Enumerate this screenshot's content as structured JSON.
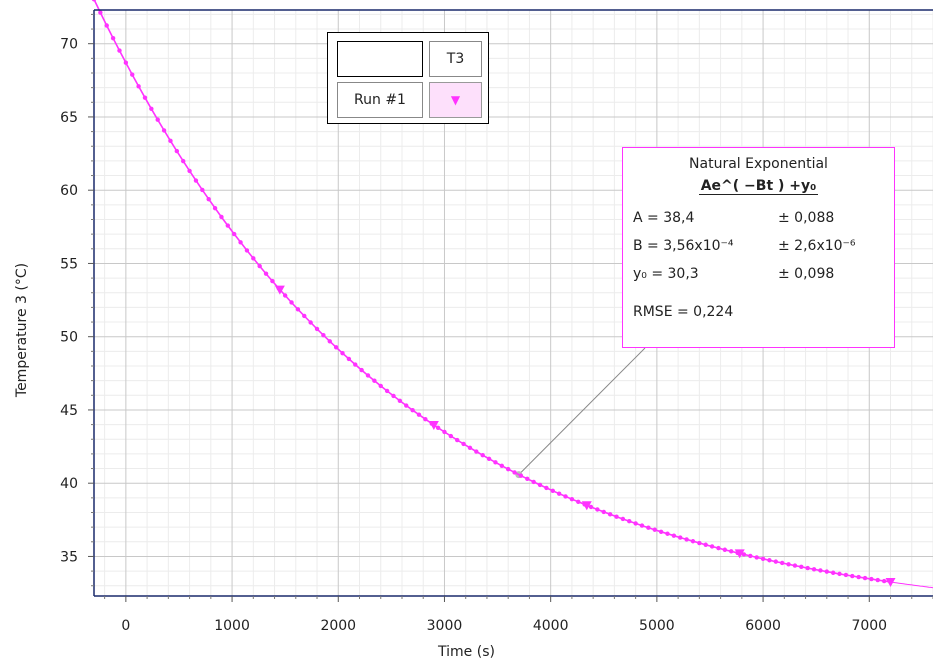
{
  "chart_data": {
    "type": "scatter",
    "title": "",
    "xlabel": "Time (s)",
    "ylabel": "Temperature 3 (°C)",
    "xlim": [
      -300,
      7600
    ],
    "ylim": [
      32.3,
      72.3
    ],
    "x_ticks": [
      "0",
      "1000",
      "2000",
      "3000",
      "4000",
      "5000",
      "6000",
      "7000"
    ],
    "y_ticks": [
      "35",
      "40",
      "45",
      "50",
      "55",
      "60",
      "65",
      "70"
    ],
    "grid": true,
    "series": [
      {
        "name": "Run #1",
        "color": "#ff33ff",
        "marker": "triangle-down",
        "x_start": -300,
        "x_end": 7200,
        "x_step": 60,
        "marker_x": [
          1450,
          2900,
          4340,
          5780,
          7200
        ]
      }
    ],
    "fit": {
      "model": "Natural Exponential",
      "A": 38.4,
      "B": 0.000356,
      "y0": 30.3,
      "callout_x": 3700
    }
  },
  "legend": {
    "header_label": "T3",
    "run_label": "Run #1",
    "run_symbol": "▼"
  },
  "fit_box": {
    "title": "Natural Exponential",
    "equation": "Ae^( −Bt ) +y₀",
    "params": [
      {
        "name": "A  = 38,4",
        "err": "± 0,088"
      },
      {
        "name": "B  = 3,56x10⁻⁴",
        "err": "± 2,6x10⁻⁶"
      },
      {
        "name": "y₀ = 30,3",
        "err": "± 0,098"
      }
    ],
    "rmse": "RMSE = 0,224"
  }
}
